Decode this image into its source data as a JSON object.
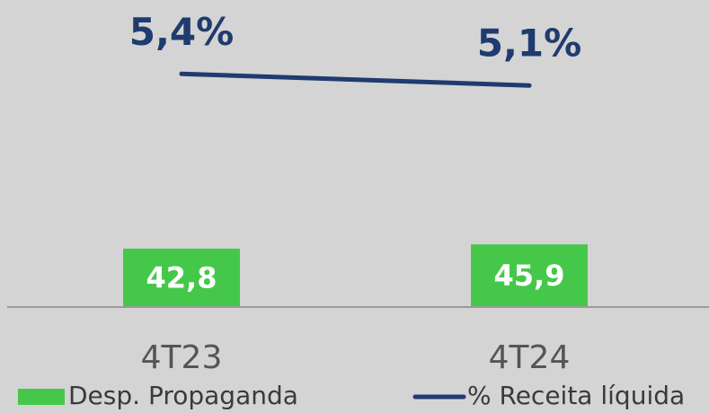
{
  "chart_data": {
    "type": "bar",
    "categories": [
      "4T23",
      "4T24"
    ],
    "ylim": [
      0,
      225
    ],
    "y2lim": [
      -0.6,
      7.3
    ],
    "series": [
      {
        "name": "Desp. Propaganda",
        "type": "bar",
        "color": "#45c84a",
        "values": [
          42.8,
          45.9
        ],
        "value_labels": [
          "42,8",
          "45,9"
        ]
      },
      {
        "name": "% Receita líquida",
        "type": "line",
        "axis": "y2",
        "color": "#1f3b6f",
        "values": [
          5.4,
          5.1
        ],
        "value_labels": [
          "5,4%",
          "5,1%"
        ]
      }
    ]
  }
}
